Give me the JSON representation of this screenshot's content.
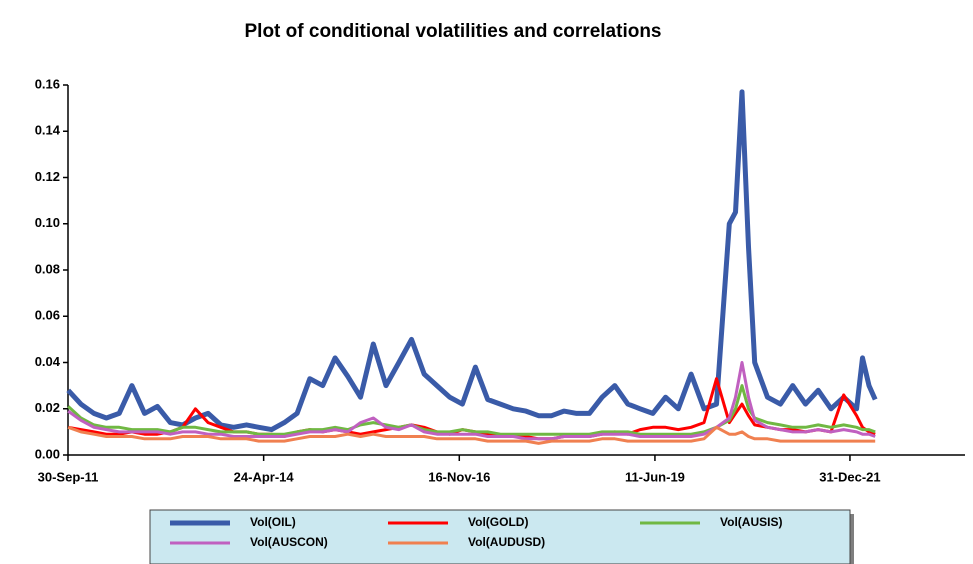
{
  "chart_data": {
    "type": "line",
    "title": "Plot of conditional volatilities and correlations",
    "x": [
      "2011-10-01",
      "2011-12-01",
      "2012-02-01",
      "2012-04-01",
      "2012-06-01",
      "2012-08-01",
      "2012-10-01",
      "2012-12-01",
      "2013-02-01",
      "2013-04-01",
      "2013-06-01",
      "2013-08-01",
      "2013-10-01",
      "2013-12-01",
      "2014-02-01",
      "2014-04-01",
      "2014-06-01",
      "2014-08-01",
      "2014-10-01",
      "2014-12-01",
      "2015-02-01",
      "2015-04-01",
      "2015-06-01",
      "2015-08-01",
      "2015-10-01",
      "2015-12-01",
      "2016-02-01",
      "2016-04-01",
      "2016-06-01",
      "2016-08-01",
      "2016-10-01",
      "2016-12-01",
      "2017-02-01",
      "2017-04-01",
      "2017-06-01",
      "2017-08-01",
      "2017-10-01",
      "2017-12-01",
      "2018-02-01",
      "2018-04-01",
      "2018-06-01",
      "2018-08-01",
      "2018-10-01",
      "2018-12-01",
      "2019-02-01",
      "2019-04-01",
      "2019-06-01",
      "2019-08-01",
      "2019-10-01",
      "2019-12-01",
      "2020-02-01",
      "2020-04-01",
      "2020-06-01",
      "2020-07-01",
      "2020-08-01",
      "2020-09-01",
      "2020-10-01",
      "2020-12-01",
      "2021-02-01",
      "2021-04-01",
      "2021-06-01",
      "2021-08-01",
      "2021-10-01",
      "2021-12-01",
      "2022-02-01",
      "2022-03-01",
      "2022-04-01",
      "2022-05-01"
    ],
    "series": [
      {
        "name": "Vol(OIL)",
        "color": "#3a5ba8",
        "values": [
          0.028,
          0.022,
          0.018,
          0.016,
          0.018,
          0.03,
          0.018,
          0.021,
          0.014,
          0.013,
          0.016,
          0.018,
          0.013,
          0.012,
          0.013,
          0.012,
          0.011,
          0.014,
          0.018,
          0.033,
          0.03,
          0.042,
          0.034,
          0.025,
          0.048,
          0.03,
          0.04,
          0.05,
          0.035,
          0.03,
          0.025,
          0.022,
          0.038,
          0.024,
          0.022,
          0.02,
          0.019,
          0.017,
          0.017,
          0.019,
          0.018,
          0.018,
          0.025,
          0.03,
          0.022,
          0.02,
          0.018,
          0.025,
          0.02,
          0.035,
          0.02,
          0.022,
          0.1,
          0.105,
          0.157,
          0.09,
          0.04,
          0.025,
          0.022,
          0.03,
          0.022,
          0.028,
          0.02,
          0.025,
          0.02,
          0.042,
          0.03,
          0.024
        ]
      },
      {
        "name": "Vol(GOLD)",
        "color": "#ff0000",
        "values": [
          0.012,
          0.011,
          0.01,
          0.009,
          0.009,
          0.01,
          0.009,
          0.009,
          0.01,
          0.012,
          0.02,
          0.014,
          0.012,
          0.01,
          0.01,
          0.009,
          0.009,
          0.008,
          0.01,
          0.011,
          0.01,
          0.011,
          0.01,
          0.009,
          0.01,
          0.011,
          0.012,
          0.013,
          0.012,
          0.01,
          0.009,
          0.011,
          0.01,
          0.009,
          0.008,
          0.008,
          0.008,
          0.007,
          0.007,
          0.008,
          0.008,
          0.008,
          0.009,
          0.01,
          0.009,
          0.011,
          0.012,
          0.012,
          0.011,
          0.012,
          0.014,
          0.033,
          0.014,
          0.018,
          0.022,
          0.017,
          0.013,
          0.012,
          0.011,
          0.011,
          0.01,
          0.011,
          0.01,
          0.026,
          0.017,
          0.012,
          0.01,
          0.009
        ]
      },
      {
        "name": "Vol(AUSIS)",
        "color": "#70b843",
        "values": [
          0.021,
          0.016,
          0.013,
          0.012,
          0.012,
          0.011,
          0.011,
          0.011,
          0.01,
          0.012,
          0.012,
          0.011,
          0.01,
          0.01,
          0.01,
          0.009,
          0.009,
          0.009,
          0.01,
          0.011,
          0.011,
          0.012,
          0.011,
          0.013,
          0.014,
          0.013,
          0.012,
          0.013,
          0.011,
          0.01,
          0.01,
          0.011,
          0.01,
          0.01,
          0.009,
          0.009,
          0.009,
          0.009,
          0.009,
          0.009,
          0.009,
          0.009,
          0.01,
          0.01,
          0.01,
          0.009,
          0.009,
          0.009,
          0.009,
          0.009,
          0.01,
          0.012,
          0.015,
          0.02,
          0.03,
          0.02,
          0.016,
          0.014,
          0.013,
          0.012,
          0.012,
          0.013,
          0.012,
          0.013,
          0.012,
          0.011,
          0.011,
          0.01
        ]
      },
      {
        "name": "Vol(AUSCON)",
        "color": "#c060c0",
        "values": [
          0.019,
          0.015,
          0.012,
          0.011,
          0.01,
          0.01,
          0.01,
          0.01,
          0.009,
          0.01,
          0.01,
          0.009,
          0.009,
          0.008,
          0.008,
          0.008,
          0.008,
          0.008,
          0.009,
          0.01,
          0.01,
          0.011,
          0.01,
          0.014,
          0.016,
          0.012,
          0.011,
          0.013,
          0.01,
          0.009,
          0.009,
          0.009,
          0.009,
          0.008,
          0.008,
          0.008,
          0.007,
          0.007,
          0.007,
          0.008,
          0.008,
          0.008,
          0.009,
          0.009,
          0.009,
          0.008,
          0.008,
          0.008,
          0.008,
          0.008,
          0.009,
          0.012,
          0.016,
          0.025,
          0.04,
          0.025,
          0.015,
          0.012,
          0.011,
          0.01,
          0.01,
          0.011,
          0.01,
          0.011,
          0.01,
          0.009,
          0.009,
          0.008
        ]
      },
      {
        "name": "Vol(AUDUSD)",
        "color": "#f08050",
        "values": [
          0.012,
          0.01,
          0.009,
          0.008,
          0.008,
          0.008,
          0.007,
          0.007,
          0.007,
          0.008,
          0.008,
          0.008,
          0.007,
          0.007,
          0.007,
          0.006,
          0.006,
          0.006,
          0.007,
          0.008,
          0.008,
          0.008,
          0.009,
          0.008,
          0.009,
          0.008,
          0.008,
          0.008,
          0.008,
          0.007,
          0.007,
          0.007,
          0.007,
          0.006,
          0.006,
          0.006,
          0.006,
          0.005,
          0.006,
          0.006,
          0.006,
          0.006,
          0.007,
          0.007,
          0.006,
          0.006,
          0.006,
          0.006,
          0.006,
          0.006,
          0.007,
          0.012,
          0.009,
          0.009,
          0.01,
          0.008,
          0.007,
          0.007,
          0.006,
          0.006,
          0.006,
          0.006,
          0.006,
          0.006,
          0.006,
          0.006,
          0.006,
          0.006
        ]
      }
    ],
    "xlim": [
      "2011-09-30",
      "2023-07-05"
    ],
    "xticks": [
      {
        "value": "2011-09-30",
        "label": "30-Sep-11"
      },
      {
        "value": "2014-04-24",
        "label": "24-Apr-14"
      },
      {
        "value": "2016-11-16",
        "label": "16-Nov-16"
      },
      {
        "value": "2019-06-11",
        "label": "11-Jun-19"
      },
      {
        "value": "2021-12-31",
        "label": "31-Dec-21"
      }
    ],
    "ylim": [
      0,
      0.16
    ],
    "yticks": [
      {
        "value": 0,
        "label": "0.00"
      },
      {
        "value": 0.02,
        "label": "0.02"
      },
      {
        "value": 0.04,
        "label": "0.04"
      },
      {
        "value": 0.06,
        "label": "0.06"
      },
      {
        "value": 0.08,
        "label": "0.08"
      },
      {
        "value": 0.1,
        "label": "0.10"
      },
      {
        "value": 0.12,
        "label": "0.12"
      },
      {
        "value": 0.14,
        "label": "0.14"
      },
      {
        "value": 0.16,
        "label": "0.16"
      }
    ],
    "legend": "bottom"
  }
}
